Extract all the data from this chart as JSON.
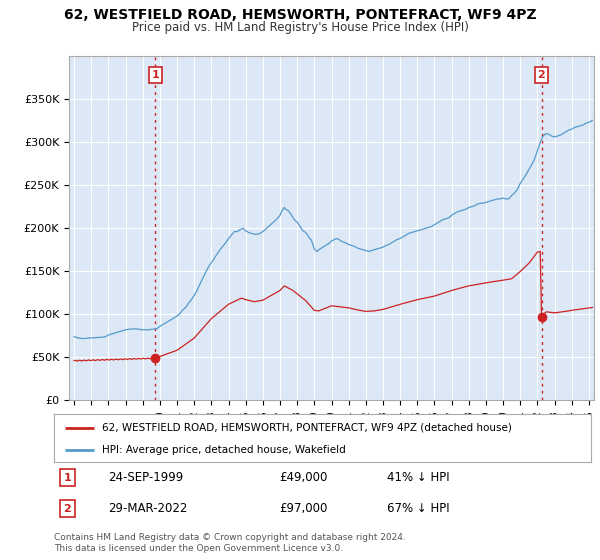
{
  "title": "62, WESTFIELD ROAD, HEMSWORTH, PONTEFRACT, WF9 4PZ",
  "subtitle": "Price paid vs. HM Land Registry's House Price Index (HPI)",
  "ylim": [
    0,
    400000
  ],
  "yticks": [
    0,
    50000,
    100000,
    150000,
    200000,
    250000,
    300000,
    350000
  ],
  "ytick_labels": [
    "£0",
    "£50K",
    "£100K",
    "£150K",
    "£200K",
    "£250K",
    "£300K",
    "£350K"
  ],
  "sale1_date": "24-SEP-1999",
  "sale1_price": 49000,
  "sale1_price_str": "£49,000",
  "sale1_hpi_pct": "41% ↓ HPI",
  "sale2_date": "29-MAR-2022",
  "sale2_price": 97000,
  "sale2_price_str": "£97,000",
  "sale2_hpi_pct": "67% ↓ HPI",
  "sale1_year": 1999.73,
  "sale2_year": 2022.24,
  "red_line_color": "#cc2222",
  "blue_line_color": "#5599cc",
  "vline_color": "#cc2222",
  "marker_color": "#cc2222",
  "bg_color": "#dce8f5",
  "plot_bg": "#dce8f5",
  "legend_label_red": "62, WESTFIELD ROAD, HEMSWORTH, PONTEFRACT, WF9 4PZ (detached house)",
  "legend_label_blue": "HPI: Average price, detached house, Wakefield",
  "footer": "Contains HM Land Registry data © Crown copyright and database right 2024.\nThis data is licensed under the Open Government Licence v3.0.",
  "xlim_left": 1994.7,
  "xlim_right": 2025.3,
  "x_tick_years": [
    1995,
    1996,
    1997,
    1998,
    1999,
    2000,
    2001,
    2002,
    2003,
    2004,
    2005,
    2006,
    2007,
    2008,
    2009,
    2010,
    2011,
    2012,
    2013,
    2014,
    2015,
    2016,
    2017,
    2018,
    2019,
    2020,
    2021,
    2022,
    2023,
    2024,
    2025
  ]
}
